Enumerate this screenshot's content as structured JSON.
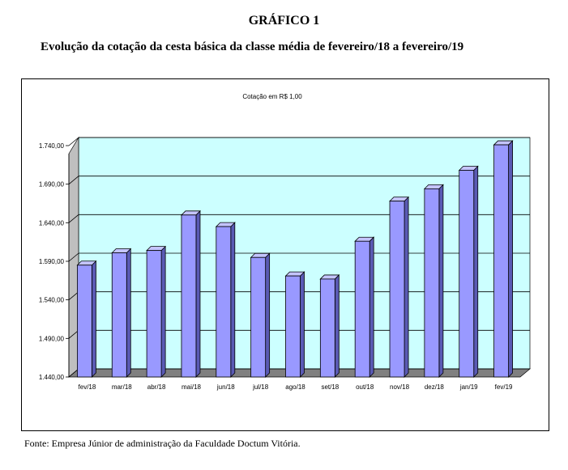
{
  "figure": {
    "heading": "GRÁFICO 1",
    "subheading": "Evolução da cotação da cesta básica da classe média de fevereiro/18 a fevereiro/19",
    "source": "Fonte: Empresa Júnior de administração da Faculdade Doctum Vitória."
  },
  "chart_data": {
    "type": "bar",
    "title": "Cotação em R$ 1,00",
    "xlabel": "",
    "ylabel": "",
    "categories": [
      "fev/18",
      "mar/18",
      "abr/18",
      "mai/18",
      "jun/18",
      "jul/18",
      "ago/18",
      "set/18",
      "out/18",
      "nov/18",
      "dez/18",
      "jan/19",
      "fev/19"
    ],
    "values": [
      1585,
      1601,
      1604,
      1650,
      1635,
      1595,
      1571,
      1567,
      1616,
      1668,
      1684,
      1708,
      1741
    ],
    "ylim": [
      1440,
      1740
    ],
    "yticks": [
      "1.440,00",
      "1.490,00",
      "1.540,00",
      "1.590,00",
      "1.640,00",
      "1.690,00",
      "1.740,00"
    ],
    "grid": true,
    "legend": "none",
    "colors": {
      "bar_front": "#9999ff",
      "bar_side": "#5a5ab4",
      "bar_top": "#c4c4ff",
      "plot_back": "#ccffff",
      "plot_floor": "#808080",
      "plot_wall": "#bfbfbf"
    }
  }
}
